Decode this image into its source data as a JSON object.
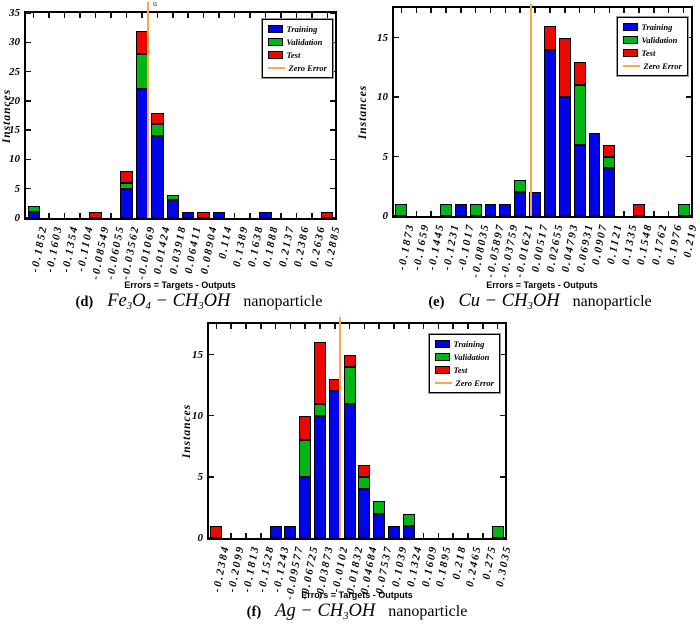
{
  "figure": {
    "background": "#ffffff",
    "cropped_title_fragment": "u"
  },
  "colors": {
    "training": "#0004e8",
    "validation": "#00b514",
    "test": "#ee0600",
    "zero_error": "#ffa64d",
    "axis": "#000000"
  },
  "legend": {
    "position": "top-right",
    "items": [
      {
        "label": "Training",
        "swatch": "box",
        "color": "#0004e8"
      },
      {
        "label": "Validation",
        "swatch": "box",
        "color": "#00b514"
      },
      {
        "label": "Test",
        "swatch": "box",
        "color": "#ee0600"
      },
      {
        "label": "Zero Error",
        "swatch": "line",
        "color": "#ffa64d"
      }
    ]
  },
  "chart_data": [
    {
      "id": "d",
      "type": "bar",
      "stacked": true,
      "grid": false,
      "legend_position": "top-right",
      "ylabel": "Instances",
      "xlabel": "Errors = Targets - Outputs",
      "ylim": [
        0,
        35
      ],
      "yticks": [
        0,
        5,
        10,
        15,
        20,
        25,
        30,
        35
      ],
      "categories": [
        "-0.1852",
        "-0.1603",
        "-0.1354",
        "-0.1104",
        "-0.08549",
        "-0.06055",
        "-0.03562",
        "-0.01069",
        "0.01424",
        "0.03918",
        "0.06411",
        "0.08904",
        "0.114",
        "0.1389",
        "0.1638",
        "0.1888",
        "0.2137",
        "0.2386",
        "0.2636",
        "0.2885"
      ],
      "series": [
        {
          "name": "Training",
          "values": [
            1,
            0,
            0,
            0,
            0,
            0,
            5,
            22,
            14,
            3,
            1,
            0,
            1,
            0,
            0,
            1,
            0,
            0,
            0,
            0
          ]
        },
        {
          "name": "Validation",
          "values": [
            1,
            0,
            0,
            0,
            0,
            0,
            1,
            6,
            2,
            1,
            0,
            0,
            0,
            0,
            0,
            0,
            0,
            0,
            0,
            0
          ]
        },
        {
          "name": "Test",
          "values": [
            0,
            0,
            0,
            0,
            1,
            0,
            2,
            4,
            2,
            0,
            0,
            1,
            0,
            0,
            0,
            0,
            0,
            0,
            0,
            1
          ]
        }
      ],
      "zero_error_line": true,
      "caption": {
        "label": "(d)",
        "formula": [
          {
            "t": "Fe"
          },
          {
            "t": "3",
            "sub": true
          },
          {
            "t": "O"
          },
          {
            "t": "4",
            "sub": true
          },
          {
            "t": " − CH"
          },
          {
            "t": "3",
            "sub": true
          },
          {
            "t": "OH"
          }
        ],
        "suffix": "nanoparticle"
      }
    },
    {
      "id": "e",
      "type": "bar",
      "stacked": true,
      "grid": false,
      "legend_position": "top-right",
      "ylabel": "Instances",
      "xlabel": "Errors = Targets - Outputs",
      "ylim": [
        0,
        17.5
      ],
      "yticks": [
        0,
        5,
        10,
        15
      ],
      "categories": [
        "-0.1873",
        "-0.1659",
        "-0.1445",
        "-0.1231",
        "-0.1017",
        "-0.08035",
        "-0.05897",
        "-0.03759",
        "-0.01621",
        "0.00517",
        "0.02655",
        "0.04793",
        "0.06931",
        "0.0907",
        "0.1121",
        "0.1335",
        "0.1548",
        "0.1762",
        "0.1976",
        "0.219"
      ],
      "series": [
        {
          "name": "Training",
          "values": [
            0,
            0,
            0,
            0,
            1,
            0,
            1,
            1,
            2,
            2,
            14,
            10,
            6,
            7,
            4,
            0,
            0,
            0,
            0,
            0
          ]
        },
        {
          "name": "Validation",
          "values": [
            1,
            0,
            0,
            1,
            0,
            1,
            0,
            0,
            1,
            0,
            0,
            0,
            5,
            0,
            1,
            0,
            0,
            0,
            0,
            1
          ]
        },
        {
          "name": "Test",
          "values": [
            0,
            0,
            0,
            0,
            0,
            0,
            0,
            0,
            0,
            0,
            2,
            5,
            2,
            0,
            1,
            0,
            1,
            0,
            0,
            0
          ]
        }
      ],
      "zero_error_line": true,
      "caption": {
        "label": "(e)",
        "formula": [
          {
            "t": "Cu − CH"
          },
          {
            "t": "3",
            "sub": true
          },
          {
            "t": "OH"
          }
        ],
        "suffix": "nanoparticle"
      }
    },
    {
      "id": "f",
      "type": "bar",
      "stacked": true,
      "grid": false,
      "legend_position": "top-right",
      "ylabel": "Instances",
      "xlabel": "Errors = Targets - Outputs",
      "ylim": [
        0,
        17.5
      ],
      "yticks": [
        0,
        5,
        10,
        15
      ],
      "categories": [
        "-0.2384",
        "-0.2099",
        "-0.1813",
        "-0.1528",
        "-0.1243",
        "-0.09577",
        "-0.06725",
        "-0.03873",
        "-0.0102",
        "0.01832",
        "0.04684",
        "0.07537",
        "0.1039",
        "0.1324",
        "0.1609",
        "0.1895",
        "0.218",
        "0.2465",
        "0.275",
        "0.3035"
      ],
      "series": [
        {
          "name": "Training",
          "values": [
            0,
            0,
            0,
            0,
            1,
            1,
            5,
            10,
            12,
            11,
            4,
            2,
            1,
            1,
            0,
            0,
            0,
            0,
            0,
            0
          ]
        },
        {
          "name": "Validation",
          "values": [
            0,
            0,
            0,
            0,
            0,
            0,
            3,
            1,
            0,
            3,
            1,
            1,
            0,
            1,
            0,
            0,
            0,
            0,
            0,
            1
          ]
        },
        {
          "name": "Test",
          "values": [
            1,
            0,
            0,
            0,
            0,
            0,
            2,
            5,
            1,
            1,
            1,
            0,
            0,
            0,
            0,
            0,
            0,
            0,
            0,
            0
          ]
        }
      ],
      "zero_error_line": true,
      "caption": {
        "label": "(f)",
        "formula": [
          {
            "t": "Ag − CH"
          },
          {
            "t": "3",
            "sub": true
          },
          {
            "t": "OH"
          }
        ],
        "suffix": "nanoparticle"
      }
    }
  ]
}
